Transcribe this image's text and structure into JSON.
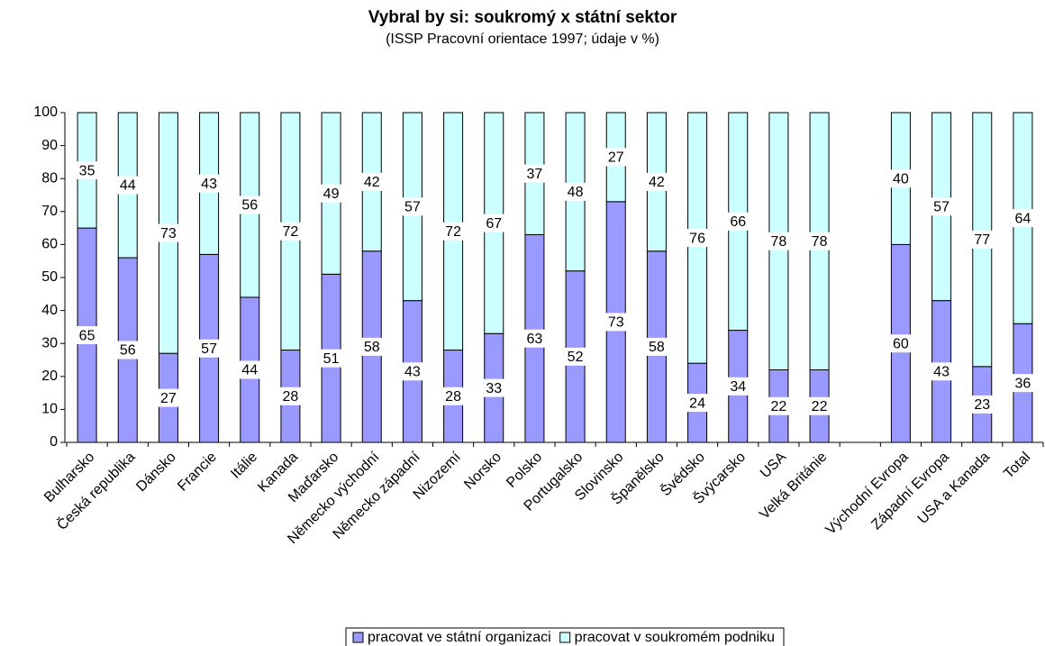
{
  "chart_data": {
    "type": "bar",
    "stacked": true,
    "title": "Vybral by si: soukromý x státní sektor",
    "subtitle": "(ISSP Pracovní orientace 1997; údaje v %)",
    "categories": [
      "Bulharsko",
      "Česká republika",
      "Dánsko",
      "Francie",
      "Itálie",
      "Kanada",
      "Maďarsko",
      "Německo východní",
      "Německo západní",
      "Nizozemí",
      "Norsko",
      "Polsko",
      "Portugalsko",
      "Slovinsko",
      "Španělsko",
      "Švédsko",
      "Švýcarsko",
      "USA",
      "Velká Británie",
      null,
      "Východní Evropa",
      "Západní Evropa",
      "USA a Kanada",
      "Total"
    ],
    "series": [
      {
        "name": "pracovat ve státní organizaci",
        "color": "#9999ff",
        "values": [
          65,
          56,
          27,
          57,
          44,
          28,
          51,
          58,
          43,
          28,
          33,
          63,
          52,
          73,
          58,
          24,
          34,
          22,
          22,
          null,
          60,
          43,
          23,
          36
        ]
      },
      {
        "name": "pracovat v soukromém podniku",
        "color": "#ccffff",
        "values": [
          35,
          44,
          73,
          43,
          56,
          72,
          49,
          42,
          57,
          72,
          67,
          37,
          48,
          27,
          42,
          76,
          66,
          78,
          78,
          null,
          40,
          57,
          77,
          64
        ]
      }
    ],
    "ylim": [
      0,
      100
    ],
    "yticks": [
      0,
      10,
      20,
      30,
      40,
      50,
      60,
      70,
      80,
      90,
      100
    ],
    "legend": "bottom"
  }
}
